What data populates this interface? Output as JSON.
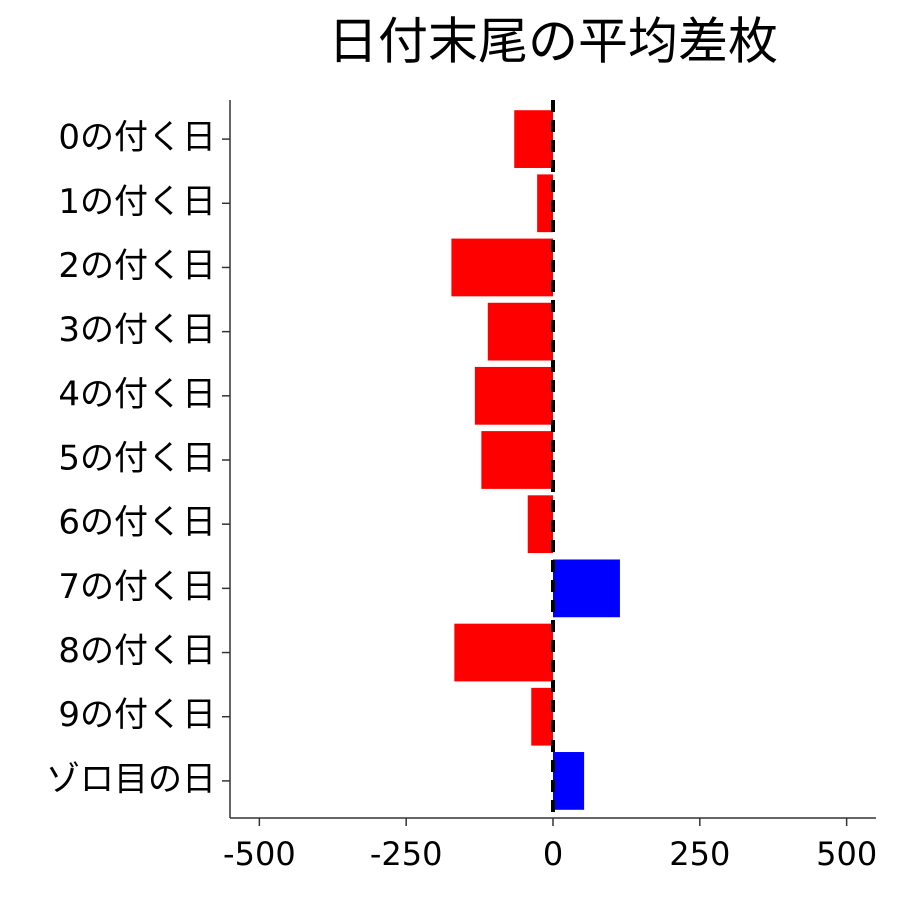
{
  "chart_data": {
    "type": "bar",
    "orientation": "horizontal",
    "title": "日付末尾の平均差枚",
    "categories": [
      "0の付く日",
      "1の付く日",
      "2の付く日",
      "3の付く日",
      "4の付く日",
      "5の付く日",
      "6の付く日",
      "7の付く日",
      "8の付く日",
      "9の付く日",
      "ゾロ目の日"
    ],
    "values": [
      -66,
      -27,
      -173,
      -111,
      -133,
      -122,
      -43,
      114,
      -168,
      -37,
      53
    ],
    "colors": [
      "#ff0000",
      "#ff0000",
      "#ff0000",
      "#ff0000",
      "#ff0000",
      "#ff0000",
      "#ff0000",
      "#0000ff",
      "#ff0000",
      "#ff0000",
      "#0000ff"
    ],
    "xlim": [
      -550,
      550
    ],
    "xticks": [
      -500,
      -250,
      0,
      250,
      500
    ],
    "reference_line": 0
  }
}
